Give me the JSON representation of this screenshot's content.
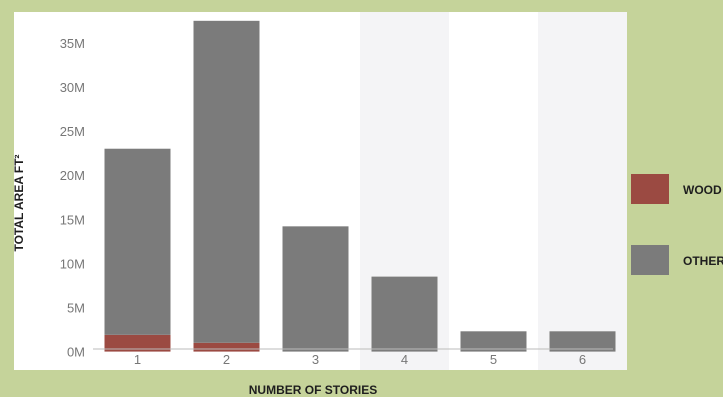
{
  "chart_data": {
    "type": "bar",
    "stacked": true,
    "xlabel": "NUMBER OF STORIES",
    "ylabel": "TOTAL AREA FT²",
    "categories": [
      "1",
      "2",
      "3",
      "4",
      "5",
      "6"
    ],
    "y_tick_labels": [
      "0M",
      "5M",
      "10M",
      "15M",
      "20M",
      "25M",
      "30M",
      "35M"
    ],
    "y_tick_values": [
      0,
      5,
      10,
      15,
      20,
      25,
      30,
      35
    ],
    "ylim": [
      -0.5,
      38.5
    ],
    "grid": false,
    "legend_position": "right",
    "series": [
      {
        "name": "WOOD",
        "color": "#9b4a42",
        "values": [
          1.9,
          1.0,
          0,
          0,
          0,
          0
        ]
      },
      {
        "name": "OTHER",
        "color": "#7b7b7b",
        "values": [
          21.1,
          36.5,
          14.2,
          8.5,
          2.3,
          2.3
        ]
      }
    ]
  },
  "colors": {
    "page_background": "#c5d39a",
    "plot_background": "#ffffff",
    "alt_column_shade": "#f4f4f6"
  }
}
